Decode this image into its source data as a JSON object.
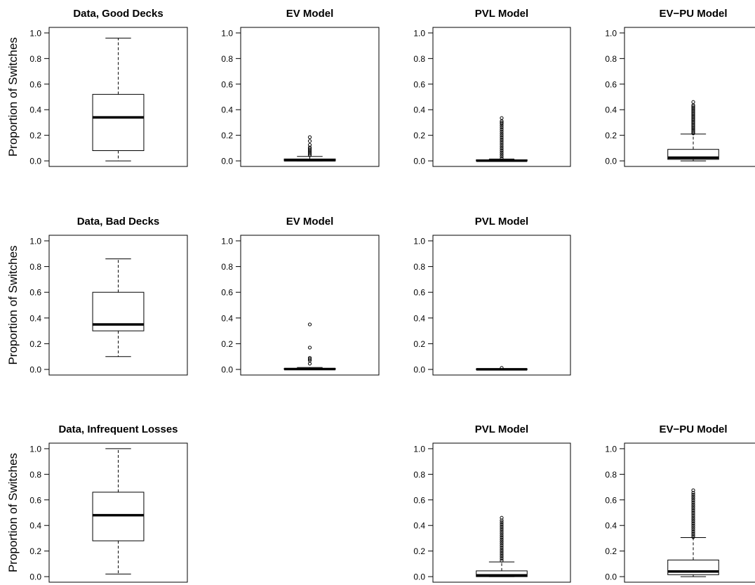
{
  "chart_data": [
    {
      "type": "box",
      "title": "Data, Good Decks",
      "ylabel": "Proportion of Switches",
      "ylim": [
        0,
        1
      ],
      "yticks": [
        "0.0",
        "0.2",
        "0.4",
        "0.6",
        "0.8",
        "1.0"
      ],
      "box": {
        "min": 0.0,
        "q1": 0.08,
        "median": 0.34,
        "q3": 0.52,
        "max": 0.96
      },
      "outliers": []
    },
    {
      "type": "box",
      "title": "EV Model",
      "ylabel": "",
      "ylim": [
        0,
        1
      ],
      "yticks": [
        "0.0",
        "0.2",
        "0.4",
        "0.6",
        "0.8",
        "1.0"
      ],
      "box": {
        "min": 0.0,
        "q1": 0.0,
        "median": 0.005,
        "q3": 0.015,
        "max": 0.035
      },
      "outliers": [
        0.045,
        0.055,
        0.065,
        0.075,
        0.085,
        0.095,
        0.105,
        0.125,
        0.155,
        0.185
      ]
    },
    {
      "type": "box",
      "title": "PVL Model",
      "ylabel": "",
      "ylim": [
        0,
        1
      ],
      "yticks": [
        "0.0",
        "0.2",
        "0.4",
        "0.6",
        "0.8",
        "1.0"
      ],
      "box": {
        "min": 0.0,
        "q1": 0.0,
        "median": 0.002,
        "q3": 0.008,
        "max": 0.015
      },
      "outliers": [
        0.02,
        0.035,
        0.05,
        0.065,
        0.08,
        0.095,
        0.11,
        0.125,
        0.14,
        0.155,
        0.17,
        0.185,
        0.2,
        0.215,
        0.23,
        0.245,
        0.26,
        0.275,
        0.29,
        0.3,
        0.31,
        0.335
      ]
    },
    {
      "type": "box",
      "title": "EV−PU Model",
      "ylabel": "",
      "ylim": [
        0,
        1
      ],
      "yticks": [
        "0.0",
        "0.2",
        "0.4",
        "0.6",
        "0.8",
        "1.0"
      ],
      "box": {
        "min": 0.0,
        "q1": 0.012,
        "median": 0.025,
        "q3": 0.09,
        "max": 0.21
      },
      "outliers": [
        0.215,
        0.225,
        0.235,
        0.245,
        0.255,
        0.265,
        0.275,
        0.285,
        0.295,
        0.305,
        0.315,
        0.325,
        0.335,
        0.345,
        0.355,
        0.365,
        0.375,
        0.385,
        0.395,
        0.405,
        0.415,
        0.425,
        0.435,
        0.46
      ]
    },
    {
      "type": "box",
      "title": "Data, Bad Decks",
      "ylabel": "Proportion of Switches",
      "ylim": [
        0,
        1
      ],
      "yticks": [
        "0.0",
        "0.2",
        "0.4",
        "0.6",
        "0.8",
        "1.0"
      ],
      "box": {
        "min": 0.1,
        "q1": 0.3,
        "median": 0.35,
        "q3": 0.6,
        "max": 0.86
      },
      "outliers": []
    },
    {
      "type": "box",
      "title": "EV Model",
      "ylabel": "",
      "ylim": [
        0,
        1
      ],
      "yticks": [
        "0.0",
        "0.2",
        "0.4",
        "0.6",
        "0.8",
        "1.0"
      ],
      "box": {
        "min": 0.0,
        "q1": 0.0,
        "median": 0.003,
        "q3": 0.008,
        "max": 0.015
      },
      "outliers": [
        0.045,
        0.07,
        0.08,
        0.09,
        0.17,
        0.35
      ]
    },
    {
      "type": "box",
      "title": "PVL Model",
      "ylabel": "",
      "ylim": [
        0,
        1
      ],
      "yticks": [
        "0.0",
        "0.2",
        "0.4",
        "0.6",
        "0.8",
        "1.0"
      ],
      "box": {
        "min": 0.0,
        "q1": 0.0,
        "median": 0.001,
        "q3": 0.004,
        "max": 0.006
      },
      "outliers": [
        0.012
      ]
    },
    {
      "type": "box",
      "title": "Data, Infrequent Losses",
      "ylabel": "Proportion of Switches",
      "ylim": [
        0,
        1
      ],
      "yticks": [
        "0.0",
        "0.2",
        "0.4",
        "0.6",
        "0.8",
        "1.0"
      ],
      "box": {
        "min": 0.02,
        "q1": 0.28,
        "median": 0.48,
        "q3": 0.66,
        "max": 1.0
      },
      "outliers": []
    },
    {
      "type": "box",
      "title": "PVL Model",
      "ylabel": "",
      "ylim": [
        0,
        1
      ],
      "yticks": [
        "0.0",
        "0.2",
        "0.4",
        "0.6",
        "0.8",
        "1.0"
      ],
      "box": {
        "min": 0.0,
        "q1": 0.0,
        "median": 0.01,
        "q3": 0.045,
        "max": 0.115
      },
      "outliers": [
        0.125,
        0.14,
        0.155,
        0.17,
        0.185,
        0.2,
        0.215,
        0.23,
        0.245,
        0.26,
        0.275,
        0.29,
        0.305,
        0.32,
        0.335,
        0.35,
        0.365,
        0.38,
        0.395,
        0.41,
        0.425,
        0.44,
        0.46
      ]
    },
    {
      "type": "box",
      "title": "EV−PU Model",
      "ylabel": "",
      "ylim": [
        0,
        1
      ],
      "yticks": [
        "0.0",
        "0.2",
        "0.4",
        "0.6",
        "0.8",
        "1.0"
      ],
      "box": {
        "min": 0.0,
        "q1": 0.015,
        "median": 0.04,
        "q3": 0.13,
        "max": 0.305
      },
      "outliers": [
        0.31,
        0.325,
        0.34,
        0.355,
        0.37,
        0.385,
        0.4,
        0.415,
        0.43,
        0.445,
        0.46,
        0.475,
        0.49,
        0.505,
        0.52,
        0.535,
        0.55,
        0.565,
        0.58,
        0.595,
        0.61,
        0.625,
        0.64,
        0.655,
        0.675
      ]
    }
  ]
}
